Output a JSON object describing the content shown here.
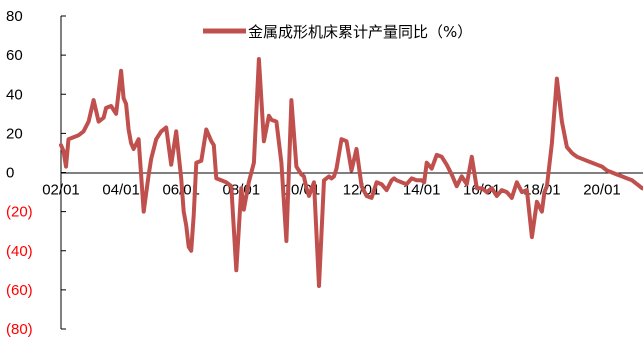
{
  "chart_data": {
    "type": "line",
    "title": "",
    "xlabel": "",
    "ylabel": "",
    "ylim": [
      -80,
      80
    ],
    "y_ticks": [
      {
        "value": 80,
        "label": "80",
        "negative": false
      },
      {
        "value": 60,
        "label": "60",
        "negative": false
      },
      {
        "value": 40,
        "label": "40",
        "negative": false
      },
      {
        "value": 20,
        "label": "20",
        "negative": false
      },
      {
        "value": 0,
        "label": "0",
        "negative": false
      },
      {
        "value": -20,
        "label": "(20)",
        "negative": true
      },
      {
        "value": -40,
        "label": "(40)",
        "negative": true
      },
      {
        "value": -60,
        "label": "(60)",
        "negative": true
      },
      {
        "value": -80,
        "label": "(80)",
        "negative": true
      }
    ],
    "x_ticks": [
      "02/01",
      "04/01",
      "06/01",
      "08/01",
      "10/01",
      "12/01",
      "14/01",
      "16/01",
      "18/01",
      "20/01"
    ],
    "legend_position": "top",
    "grid": false,
    "colors": {
      "series": "#c0504d",
      "negative_label": "#ff0000",
      "text": "#000000"
    },
    "series": [
      {
        "name": "金属成形机床累计产量同比（%）",
        "x": [
          "2002-01",
          "2002-02",
          "2002-03",
          "2002-04",
          "2002-06",
          "2002-08",
          "2002-10",
          "2002-12",
          "2003-02",
          "2003-04",
          "2003-05",
          "2003-06",
          "2003-07",
          "2003-09",
          "2003-11",
          "2004-01",
          "2004-02",
          "2004-03",
          "2004-04",
          "2004-05",
          "2004-06",
          "2004-08",
          "2004-10",
          "2004-12",
          "2005-01",
          "2005-03",
          "2005-05",
          "2005-07",
          "2005-09",
          "2005-11",
          "2006-01",
          "2006-02",
          "2006-03",
          "2006-04",
          "2006-05",
          "2006-06",
          "2006-07",
          "2006-09",
          "2006-11",
          "2007-01",
          "2007-02",
          "2007-03",
          "2007-05",
          "2007-07",
          "2007-09",
          "2007-11",
          "2008-01",
          "2008-02",
          "2008-03",
          "2008-04",
          "2008-06",
          "2008-08",
          "2008-10",
          "2008-12",
          "2009-01",
          "2009-03",
          "2009-05",
          "2009-07",
          "2009-09",
          "2009-11",
          "2010-01",
          "2010-02",
          "2010-03",
          "2010-04",
          "2010-06",
          "2010-08",
          "2010-10",
          "2010-12",
          "2011-01",
          "2011-02",
          "2011-03",
          "2011-05",
          "2011-07",
          "2011-09",
          "2011-11",
          "2012-01",
          "2012-03",
          "2012-05",
          "2012-07",
          "2012-09",
          "2012-11",
          "2013-01",
          "2013-02",
          "2013-03",
          "2013-05",
          "2013-07",
          "2013-09",
          "2013-11",
          "2014-01",
          "2014-02",
          "2014-03",
          "2014-05",
          "2014-07",
          "2014-09",
          "2014-11",
          "2015-01",
          "2015-03",
          "2015-05",
          "2015-07",
          "2015-09",
          "2015-11",
          "2016-01",
          "2016-03",
          "2016-05",
          "2016-07",
          "2016-09",
          "2016-11",
          "2017-01",
          "2017-03",
          "2017-05",
          "2017-07",
          "2017-09",
          "2017-11",
          "2018-01",
          "2018-02",
          "2018-03",
          "2018-05",
          "2018-07",
          "2018-09",
          "2018-11",
          "2019-01",
          "2019-02",
          "2019-03",
          "2019-05",
          "2019-07",
          "2019-09",
          "2019-11",
          "2020-01",
          "2020-02",
          "2020-03",
          "2020-05",
          "2020-07",
          "2020-09",
          "2020-11",
          "2021-01",
          "2021-02",
          "2021-03",
          "2021-04",
          "2021-05"
        ],
        "values": [
          14,
          11,
          3,
          17,
          18,
          19,
          21,
          26,
          37,
          26,
          27,
          28,
          33,
          34,
          30,
          52,
          38,
          35,
          22,
          15,
          12,
          17,
          -20,
          -1,
          7,
          17,
          21,
          23,
          4,
          21,
          -3,
          -20,
          -27,
          -38,
          -40,
          -22,
          5,
          6,
          22,
          16,
          14,
          -3,
          -4,
          -5,
          -7,
          -50,
          -8,
          -19,
          -12,
          -5,
          5,
          58,
          16,
          29,
          27,
          26,
          5,
          -35,
          37,
          3,
          -1,
          -2,
          -8,
          -12,
          -5,
          -58,
          -4,
          -2,
          -3,
          -2,
          2,
          17,
          16,
          1,
          12,
          -7,
          -12,
          -13,
          -5,
          -6,
          -9,
          -4,
          -3,
          -4,
          -5,
          -6,
          -3,
          -4,
          -4,
          -5,
          5,
          2,
          9,
          8,
          4,
          -1,
          -7,
          -2,
          -6,
          8,
          -8,
          -8,
          -10,
          -8,
          -12,
          -9,
          -10,
          -13,
          -5,
          -10,
          -9,
          -33,
          -15,
          -20,
          -10,
          -7,
          15,
          48,
          26,
          13,
          10,
          9,
          8,
          7,
          6,
          5,
          4,
          3,
          2,
          1,
          0,
          -1,
          -2,
          -3,
          -4,
          -5,
          -6,
          -7,
          -8
        ]
      }
    ]
  }
}
